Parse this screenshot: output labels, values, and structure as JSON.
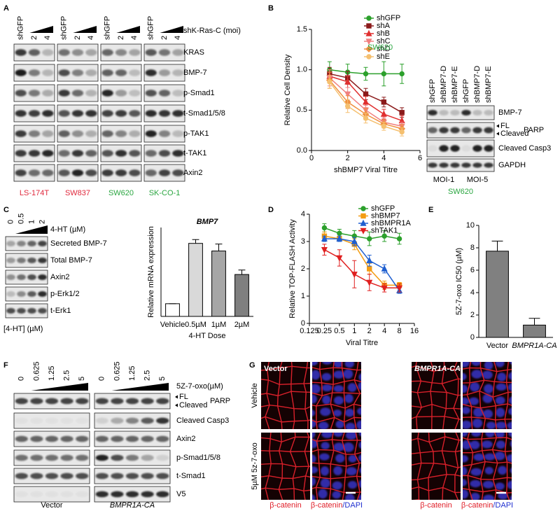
{
  "panels": {
    "A": {
      "label": "A",
      "treatment": "shK-Ras-C (moi)",
      "lane_groups": [
        [
          "shGFP",
          "2",
          "4"
        ],
        [
          "shGFP",
          "2",
          "4"
        ],
        [
          "shGFP",
          "2",
          "4"
        ],
        [
          "shGFP",
          "2",
          "4"
        ]
      ],
      "rows": [
        "KRAS",
        "BMP-7",
        "p-Smad1",
        "t-Smad1/5/8",
        "p-TAK1",
        "t-TAK1",
        "Axin2"
      ],
      "cell_lines": [
        {
          "name": "LS-174T",
          "color": "#e0283c"
        },
        {
          "name": "SW837",
          "color": "#e0283c"
        },
        {
          "name": "SW620",
          "color": "#2aa640"
        },
        {
          "name": "SK-CO-1",
          "color": "#2aa640"
        }
      ]
    },
    "B": {
      "label": "B",
      "lane_groups": [
        [
          "shGFP",
          "shBMP7-D",
          "shBMP7-E"
        ],
        [
          "shGFP",
          "shBMP7-D",
          "shBMP7-E"
        ]
      ],
      "rows": [
        "BMP-7",
        "PARP",
        "Cleaved Casp3",
        "GAPDH"
      ],
      "parp_marks": [
        "FL",
        "Cleaved"
      ],
      "groups": [
        "MOI-1",
        "MOI-5"
      ],
      "cell_line": "SW620",
      "cell_line_color": "#2aa640"
    },
    "C": {
      "label": "C",
      "lanes": [
        "0",
        "0.5",
        "1",
        "2"
      ],
      "treatment": "4-HT (µM)",
      "rows": [
        "Secreted BMP-7",
        "Total BMP-7",
        "Axin2",
        "p-Erk1/2",
        "t-Erk1"
      ],
      "footer": "[4-HT] (µM)"
    },
    "D": {
      "label": "D"
    },
    "E": {
      "label": "E"
    },
    "F": {
      "label": "F",
      "treatment": "5Z-7-oxo(µM)",
      "lane_groups": [
        [
          "0",
          "0.625",
          "1.25",
          "2.5",
          "5"
        ],
        [
          "0",
          "0.625",
          "1.25",
          "2.5",
          "5"
        ]
      ],
      "rows": [
        "PARP",
        "Cleaved Casp3",
        "Axin2",
        "p-Smad1/5/8",
        "t-Smad1",
        "V5"
      ],
      "parp_marks": [
        "FL",
        "Cleaved"
      ],
      "groups": [
        "Vector",
        "BMPR1A-CA"
      ]
    },
    "G": {
      "label": "G",
      "column_groups": [
        "Vector",
        "BMPR1A-CA"
      ],
      "rows": [
        "Vehicle",
        "5µM 5z-7-oxo"
      ],
      "channel_label": "β-catenin",
      "merge_label": [
        "β-catenin",
        "/DAPI"
      ],
      "channel_color": "#e0202a",
      "dapi_color": "#2030d0"
    }
  },
  "chart_data": [
    {
      "type": "line",
      "xlabel": "shBMP7 Viral Titre",
      "ylabel": "Relative Cell Density",
      "annotation": "SW620",
      "annotation_color": "#2aa640",
      "x": [
        1,
        2,
        3,
        4,
        5
      ],
      "xlim": [
        0,
        6
      ],
      "xticks": [
        0,
        2,
        4,
        6
      ],
      "ylim": [
        0,
        1.5
      ],
      "yticks": [
        {
          "value": 0,
          "label": "0.0"
        },
        0.5,
        {
          "value": 1,
          "label": "1.0"
        },
        1.5
      ],
      "series": [
        {
          "name": "shGFP",
          "color": "#2ca02c",
          "marker": "circle",
          "values": [
            1.0,
            0.97,
            0.95,
            0.95,
            0.95
          ],
          "errors": [
            0.1,
            0.1,
            0.08,
            0.15,
            0.12
          ]
        },
        {
          "name": "shA",
          "color": "#8b1a1a",
          "marker": "square",
          "values": [
            0.95,
            0.9,
            0.7,
            0.6,
            0.47
          ],
          "errors": [
            0.08,
            0.08,
            0.07,
            0.06,
            0.06
          ]
        },
        {
          "name": "shB",
          "color": "#e03030",
          "marker": "triangle",
          "values": [
            0.92,
            0.85,
            0.6,
            0.45,
            0.37
          ],
          "errors": [
            0.08,
            0.07,
            0.07,
            0.06,
            0.06
          ]
        },
        {
          "name": "shC",
          "color": "#f08080",
          "marker": "triangle-down",
          "values": [
            0.9,
            0.7,
            0.5,
            0.35,
            0.3
          ],
          "errors": [
            0.1,
            0.08,
            0.06,
            0.06,
            0.05
          ]
        },
        {
          "name": "shD",
          "color": "#f09040",
          "marker": "diamond",
          "values": [
            0.87,
            0.6,
            0.45,
            0.33,
            0.27
          ],
          "errors": [
            0.1,
            0.08,
            0.07,
            0.05,
            0.05
          ]
        },
        {
          "name": "shE",
          "color": "#f5c070",
          "marker": "circle",
          "values": [
            0.85,
            0.55,
            0.4,
            0.3,
            0.23
          ],
          "errors": [
            0.08,
            0.08,
            0.06,
            0.05,
            0.05
          ]
        }
      ]
    },
    {
      "type": "bar",
      "title": "BMP7",
      "ylabel": "Relative mRNA expression",
      "xlabel": "4-HT Dose",
      "categories": [
        "Vehicle",
        "0.5µM",
        "1µM",
        "2µM"
      ],
      "values": [
        1,
        5.75,
        5.15,
        3.3
      ],
      "errors": [
        0,
        0.3,
        0.55,
        0.35
      ],
      "colors": [
        "#ffffff",
        "#d9d9d9",
        "#a6a6a6",
        "#7f7f7f"
      ],
      "ylim": [
        0,
        7
      ]
    },
    {
      "type": "line",
      "xscale": "log2",
      "xlabel": "Viral Titre",
      "ylabel": "Relative TOP-FLASH Activity",
      "x": [
        0.25,
        0.5,
        1,
        2,
        4,
        8
      ],
      "xlim": [
        0.125,
        16
      ],
      "xticks": [
        0.125,
        0.25,
        0.5,
        1,
        2,
        4,
        8,
        16
      ],
      "ylim": [
        0,
        4
      ],
      "yticks": [
        0,
        1,
        2,
        3,
        4
      ],
      "series": [
        {
          "name": "shGFP",
          "color": "#2ca02c",
          "marker": "circle",
          "values": [
            3.5,
            3.3,
            3.2,
            3.1,
            3.2,
            3.1
          ],
          "errors": [
            0.15,
            0.15,
            0.2,
            0.25,
            0.2,
            0.2
          ]
        },
        {
          "name": "shBMP7",
          "color": "#f39c12",
          "marker": "square",
          "values": [
            3.2,
            3.1,
            2.9,
            2.0,
            1.4,
            1.4
          ],
          "errors": [
            0.15,
            0.1,
            0.2,
            0.2,
            0.15,
            0.1
          ]
        },
        {
          "name": "shBMPR1A",
          "color": "#1f5fd0",
          "marker": "triangle",
          "values": [
            3.1,
            3.1,
            3.0,
            2.3,
            2.0,
            1.2
          ],
          "errors": [
            0.1,
            0.1,
            0.15,
            0.2,
            0.15,
            0.1
          ]
        },
        {
          "name": "shTAK1",
          "color": "#e02020",
          "marker": "triangle-down",
          "values": [
            2.7,
            2.4,
            1.8,
            1.5,
            1.3,
            1.3
          ],
          "errors": [
            0.2,
            0.3,
            0.5,
            0.3,
            0.15,
            0.15
          ]
        }
      ]
    },
    {
      "type": "bar",
      "ylabel": "5Z-7-oxo IC50 (µM)",
      "categories": [
        "Vector",
        "BMPR1A-CA"
      ],
      "values": [
        7.7,
        1.1
      ],
      "errors": [
        0.9,
        0.6
      ],
      "color": "#808080",
      "ylim": [
        0,
        10
      ],
      "yticks": [
        0,
        2,
        4,
        6,
        8,
        10
      ]
    }
  ]
}
